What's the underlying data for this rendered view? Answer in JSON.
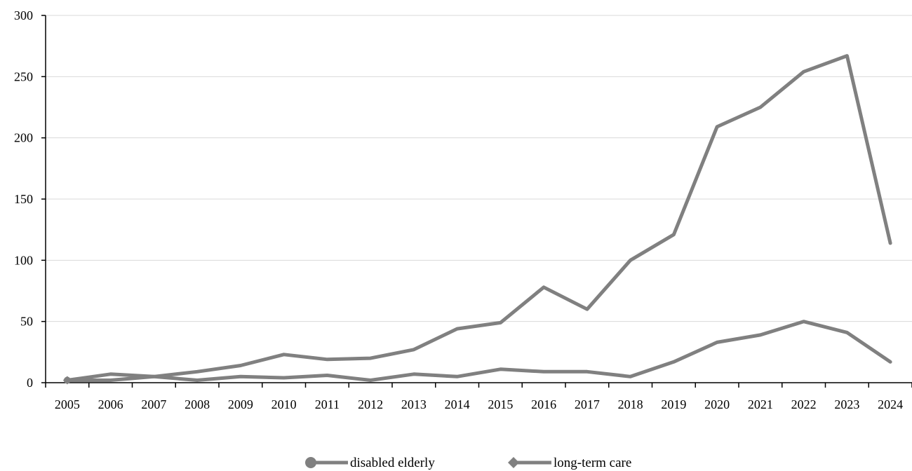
{
  "chart_data": {
    "type": "line",
    "categories": [
      "2005",
      "2006",
      "2007",
      "2008",
      "2009",
      "2010",
      "2011",
      "2012",
      "2013",
      "2014",
      "2015",
      "2016",
      "2017",
      "2018",
      "2019",
      "2020",
      "2021",
      "2022",
      "2023",
      "2024"
    ],
    "series": [
      {
        "name": "disabled elderly",
        "marker": "circle",
        "values": [
          2,
          7,
          5,
          2,
          5,
          4,
          6,
          2,
          7,
          5,
          11,
          9,
          9,
          5,
          17,
          33,
          39,
          50,
          41,
          17
        ]
      },
      {
        "name": "long-term care",
        "marker": "diamond",
        "values": [
          2,
          2,
          5,
          9,
          14,
          23,
          19,
          20,
          27,
          44,
          49,
          78,
          60,
          100,
          121,
          209,
          225,
          254,
          267,
          114
        ]
      }
    ],
    "yticks": [
      "0",
      "50",
      "100",
      "150",
      "200",
      "250",
      "300"
    ],
    "ylim": [
      0,
      300
    ],
    "grid": true,
    "legend_position": "bottom-center",
    "line_color": "#808080",
    "grid_color": "#d9d9d9",
    "title": "",
    "xlabel": "",
    "ylabel": ""
  }
}
